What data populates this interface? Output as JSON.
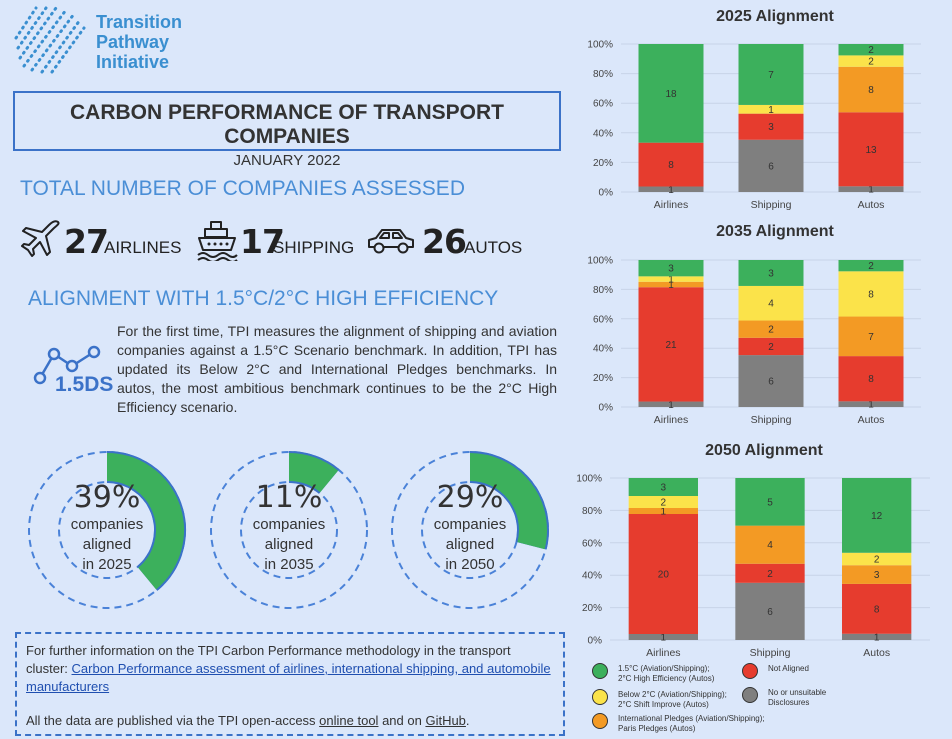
{
  "logo": {
    "line1": "Transition",
    "line2": "Pathway",
    "line3": "Initiative"
  },
  "title": {
    "main": "CARBON PERFORMANCE OF TRANSPORT COMPANIES",
    "date": "JANUARY 2022"
  },
  "assessed": {
    "heading": "TOTAL NUMBER OF COMPANIES ASSESSED",
    "items": [
      {
        "value": "27",
        "label": "AIRLINES",
        "icon": "airplane-icon"
      },
      {
        "value": "17",
        "label": "SHIPPING",
        "icon": "ship-icon"
      },
      {
        "value": "26",
        "label": "AUTOS",
        "icon": "car-icon"
      }
    ]
  },
  "alignment": {
    "heading": "ALIGNMENT WITH 1.5°C/2°C HIGH EFFICIENCY",
    "badge": "1.5DS",
    "text": "For the first time, TPI measures the alignment of shipping and aviation companies against a 1.5°C Scenario benchmark. In addition, TPI has updated its Below 2°C and International Pledges benchmarks. In autos, the most ambitious benchmark continues to be the 2°C High Efficiency scenario."
  },
  "rings": [
    {
      "pct": "39%",
      "fraction": 0.39,
      "l1": "companies",
      "l2": "aligned",
      "l3": "in 2025"
    },
    {
      "pct": "11%",
      "fraction": 0.11,
      "l1": "companies",
      "l2": "aligned",
      "l3": "in 2035"
    },
    {
      "pct": "29%",
      "fraction": 0.29,
      "l1": "companies",
      "l2": "aligned",
      "l3": "in 2050"
    }
  ],
  "info": {
    "p1": "For further information on the TPI Carbon Performance methodology in the transport cluster: ",
    "link1": "Carbon Performance assessment of airlines, international shipping, and automobile manufacturers",
    "p2": "All the data are published via the TPI open-access ",
    "link2": "online tool",
    "p3": " and on ",
    "link3": "GitHub",
    "p4": "."
  },
  "colors": {
    "green": "#3cb05c",
    "yellow": "#fbe34a",
    "orange": "#f39a24",
    "red": "#e63c2e",
    "grey": "#7f7f7f",
    "accent": "#3b72c8"
  },
  "legend": [
    {
      "color": "#3cb05c",
      "l1": "1.5°C (Aviation/Shipping);",
      "l2": "2°C High Efficiency (Autos)"
    },
    {
      "color": "#fbe34a",
      "l1": "Below 2°C (Aviation/Shipping);",
      "l2": "2°C Shift Improve (Autos)"
    },
    {
      "color": "#f39a24",
      "l1": "International Pledges (Aviation/Shipping);",
      "l2": "Paris Pledges (Autos)"
    },
    {
      "color": "#e63c2e",
      "l1": "Not Aligned",
      "l2": ""
    },
    {
      "color": "#7f7f7f",
      "l1": "No or unsuitable",
      "l2": "Disclosures"
    }
  ],
  "chart_data": [
    {
      "type": "bar",
      "stacked": "percent",
      "title": "2025 Alignment",
      "categories": [
        "Airlines",
        "Shipping",
        "Autos"
      ],
      "yticks": [
        "0%",
        "20%",
        "40%",
        "60%",
        "80%",
        "100%"
      ],
      "series": [
        {
          "name": "No or unsuitable Disclosures",
          "color": "#7f7f7f",
          "values": [
            1,
            6,
            1
          ]
        },
        {
          "name": "Not Aligned",
          "color": "#e63c2e",
          "values": [
            8,
            3,
            13
          ]
        },
        {
          "name": "International Pledges",
          "color": "#f39a24",
          "values": [
            0,
            0,
            8
          ]
        },
        {
          "name": "Below 2°C",
          "color": "#fbe34a",
          "values": [
            0,
            1,
            2
          ]
        },
        {
          "name": "1.5°C",
          "color": "#3cb05c",
          "values": [
            18,
            7,
            2
          ]
        }
      ]
    },
    {
      "type": "bar",
      "stacked": "percent",
      "title": "2035 Alignment",
      "categories": [
        "Airlines",
        "Shipping",
        "Autos"
      ],
      "yticks": [
        "0%",
        "20%",
        "40%",
        "60%",
        "80%",
        "100%"
      ],
      "series": [
        {
          "name": "No or unsuitable Disclosures",
          "color": "#7f7f7f",
          "values": [
            1,
            6,
            1
          ]
        },
        {
          "name": "Not Aligned",
          "color": "#e63c2e",
          "values": [
            21,
            2,
            8
          ]
        },
        {
          "name": "International Pledges",
          "color": "#f39a24",
          "values": [
            1,
            2,
            7
          ]
        },
        {
          "name": "Below 2°C",
          "color": "#fbe34a",
          "values": [
            1,
            4,
            8
          ]
        },
        {
          "name": "1.5°C",
          "color": "#3cb05c",
          "values": [
            3,
            3,
            2
          ]
        }
      ]
    },
    {
      "type": "bar",
      "stacked": "percent",
      "title": "2050 Alignment",
      "categories": [
        "Airlines",
        "Shipping",
        "Autos"
      ],
      "yticks": [
        "0%",
        "20%",
        "40%",
        "60%",
        "80%",
        "100%"
      ],
      "series": [
        {
          "name": "No or unsuitable Disclosures",
          "color": "#7f7f7f",
          "values": [
            1,
            6,
            1
          ]
        },
        {
          "name": "Not Aligned",
          "color": "#e63c2e",
          "values": [
            20,
            2,
            8
          ]
        },
        {
          "name": "International Pledges",
          "color": "#f39a24",
          "values": [
            1,
            4,
            3
          ]
        },
        {
          "name": "Below 2°C",
          "color": "#fbe34a",
          "values": [
            2,
            0,
            2
          ]
        },
        {
          "name": "1.5°C",
          "color": "#3cb05c",
          "values": [
            3,
            5,
            12
          ]
        }
      ]
    }
  ]
}
